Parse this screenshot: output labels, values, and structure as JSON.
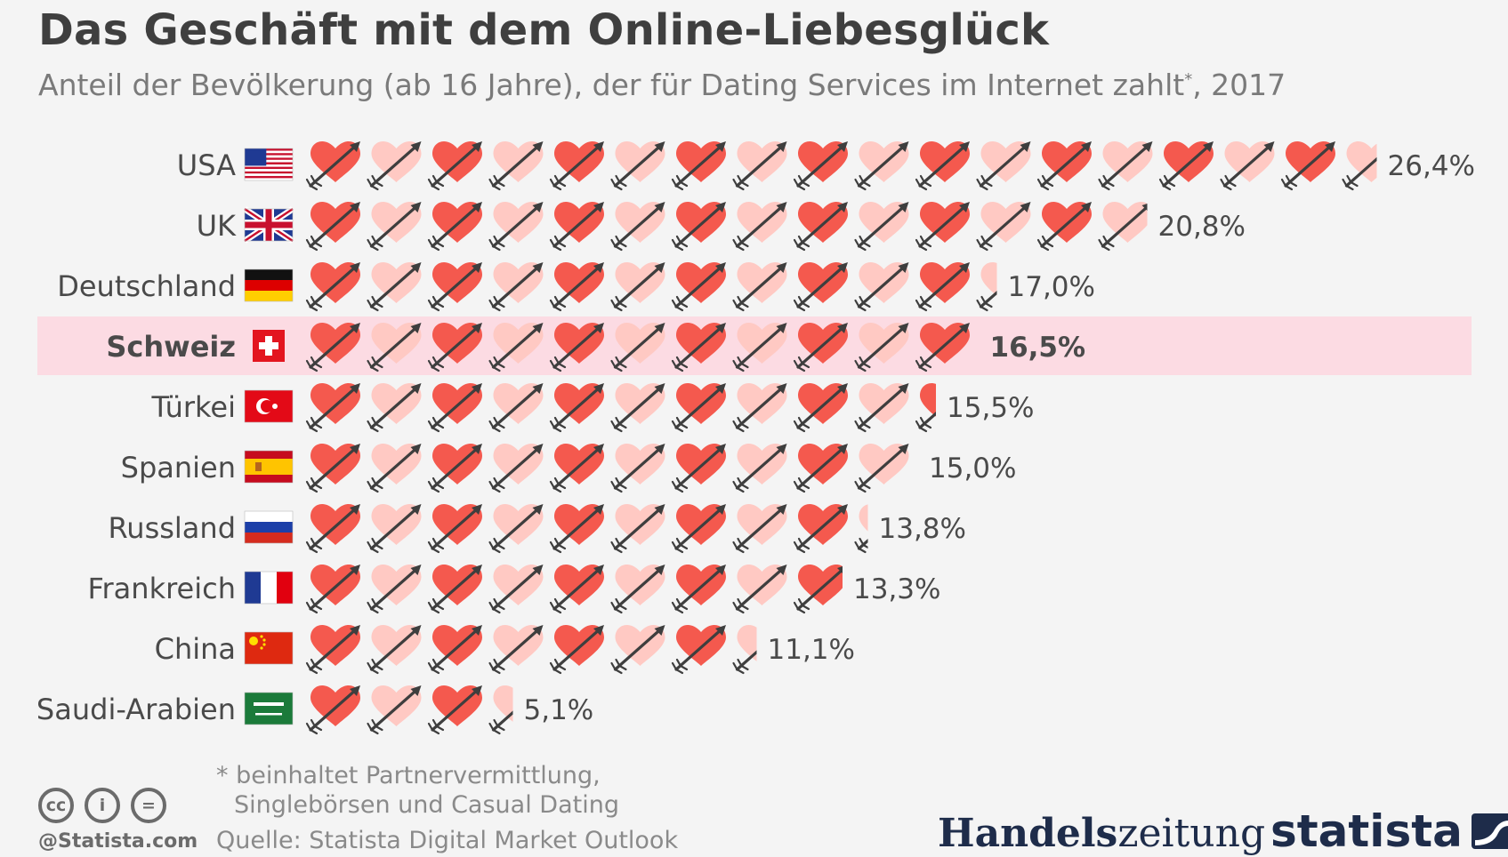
{
  "title": "Das Geschäft mit dem Online-Liebesglück",
  "subtitle": "Anteil der Bevölkerung (ab 16 Jahre), der für Dating Services im Internet zahlt",
  "subtitle_mark": "*",
  "subtitle_year": ", 2017",
  "footnote": {
    "line1": "* beinhaltet Partnervermittlung,",
    "line2": "Singlebörsen und Casual Dating"
  },
  "source": "Quelle: Statista Digital Market Outlook",
  "credit": "@Statista.com",
  "cc_icons": [
    "cc-icon",
    "by-icon",
    "nd-icon"
  ],
  "cc_glyphs": [
    "cc",
    "i",
    "="
  ],
  "logos": {
    "handelszeitung_bold": "Handels",
    "handelszeitung_rest": "zeitung",
    "statista": "statista"
  },
  "colors": {
    "heart_dark": "#f4594e",
    "heart_light": "#ffc9c3",
    "arrow": "#3e3e3e",
    "highlight": "#fcdbe3",
    "text": "#4a4a4a"
  },
  "chart_data": {
    "type": "bar",
    "unit_per_heart": 1.5,
    "categories": [
      "USA",
      "UK",
      "Deutschland",
      "Schweiz",
      "Türkei",
      "Spanien",
      "Russland",
      "Frankreich",
      "China",
      "Saudi-Arabien"
    ],
    "values": [
      26.4,
      20.8,
      17.0,
      16.5,
      15.5,
      15.0,
      13.8,
      13.3,
      11.1,
      5.1
    ],
    "value_labels": [
      "26,4%",
      "20,8%",
      "17,0%",
      "16,5%",
      "15,5%",
      "15,0%",
      "13,8%",
      "13,3%",
      "11,1%",
      "5,1%"
    ],
    "flags": [
      "flag-usa",
      "flag-uk",
      "flag-germany",
      "flag-switzerland",
      "flag-turkey",
      "flag-spain",
      "flag-russia",
      "flag-france",
      "flag-china",
      "flag-saudi-arabia"
    ],
    "highlighted_category": "Schweiz"
  }
}
